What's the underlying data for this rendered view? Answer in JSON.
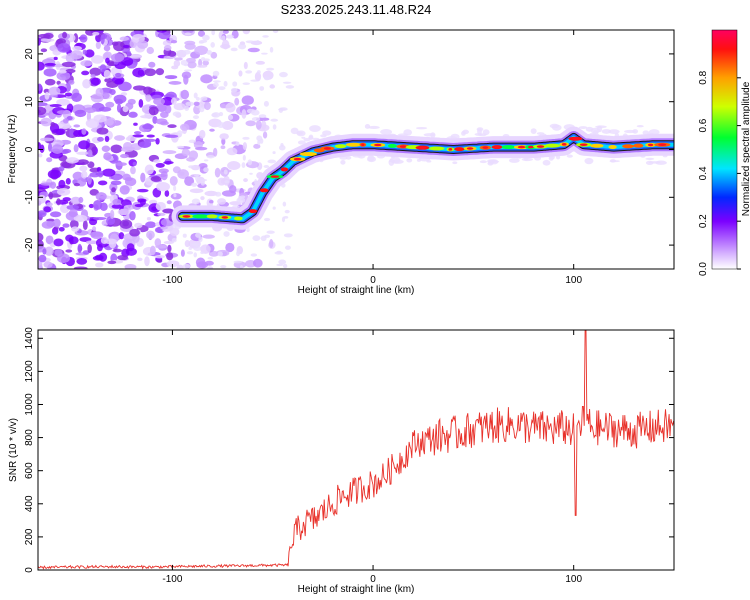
{
  "title": "S233.2025.243.11.48.R24",
  "chart_data": [
    {
      "type": "heatmap",
      "xlabel": "Height of straight line (km)",
      "ylabel": "Frequency (Hz)",
      "xlim": [
        -167,
        150
      ],
      "ylim": [
        -25,
        25
      ],
      "xticks": [
        -100,
        0,
        100
      ],
      "yticks": [
        -20,
        -10,
        0,
        10,
        20
      ],
      "colorbar": {
        "label": "Normalized spectral amplitude",
        "range": [
          0,
          1
        ],
        "ticks": [
          "0.0",
          "0.2",
          "0.4",
          "0.6",
          "0.8"
        ],
        "tick_values": [
          0,
          0.2,
          0.4,
          0.6,
          0.8
        ]
      },
      "ridge": {
        "x": [
          -95,
          -80,
          -65,
          -60,
          -55,
          -50,
          -45,
          -40,
          -35,
          -30,
          -25,
          -20,
          -10,
          0,
          20,
          40,
          60,
          80,
          95,
          100,
          105,
          120,
          140,
          150
        ],
        "y": [
          -14,
          -14,
          -14.5,
          -13,
          -9,
          -6,
          -4.5,
          -2.5,
          -1.5,
          -0.5,
          0,
          0.5,
          1,
          1,
          0.5,
          0,
          0.5,
          0.5,
          1,
          2.5,
          1,
          0.5,
          1,
          1
        ]
      },
      "noise_region_x": [
        -167,
        -60
      ]
    },
    {
      "type": "line",
      "xlabel": "Height of straight line (km)",
      "ylabel": "SNR (10 * v/v)",
      "xlim": [
        -167,
        150
      ],
      "ylim": [
        0,
        1450
      ],
      "xticks": [
        -100,
        0,
        100
      ],
      "yticks": [
        0,
        200,
        400,
        600,
        800,
        1000,
        1200,
        1400
      ],
      "series": [
        {
          "color": "#e8312a",
          "x": [
            -167,
            -150,
            -130,
            -110,
            -90,
            -70,
            -55,
            -42,
            -40,
            -35,
            -30,
            -25,
            -20,
            -15,
            -10,
            -5,
            0,
            5,
            10,
            15,
            20,
            25,
            30,
            40,
            50,
            60,
            70,
            80,
            90,
            95,
            100,
            105,
            110,
            120,
            130,
            140,
            150
          ],
          "y": [
            15,
            18,
            20,
            18,
            22,
            25,
            28,
            30,
            200,
            280,
            300,
            350,
            400,
            450,
            470,
            500,
            520,
            560,
            620,
            680,
            760,
            780,
            800,
            820,
            850,
            870,
            880,
            860,
            850,
            860,
            840,
            900,
            860,
            850,
            840,
            860,
            870
          ]
        }
      ],
      "annotations": [
        {
          "x": 106,
          "y": 1450,
          "note": "spike"
        },
        {
          "x": 101,
          "y": 330,
          "note": "dip"
        }
      ]
    }
  ]
}
